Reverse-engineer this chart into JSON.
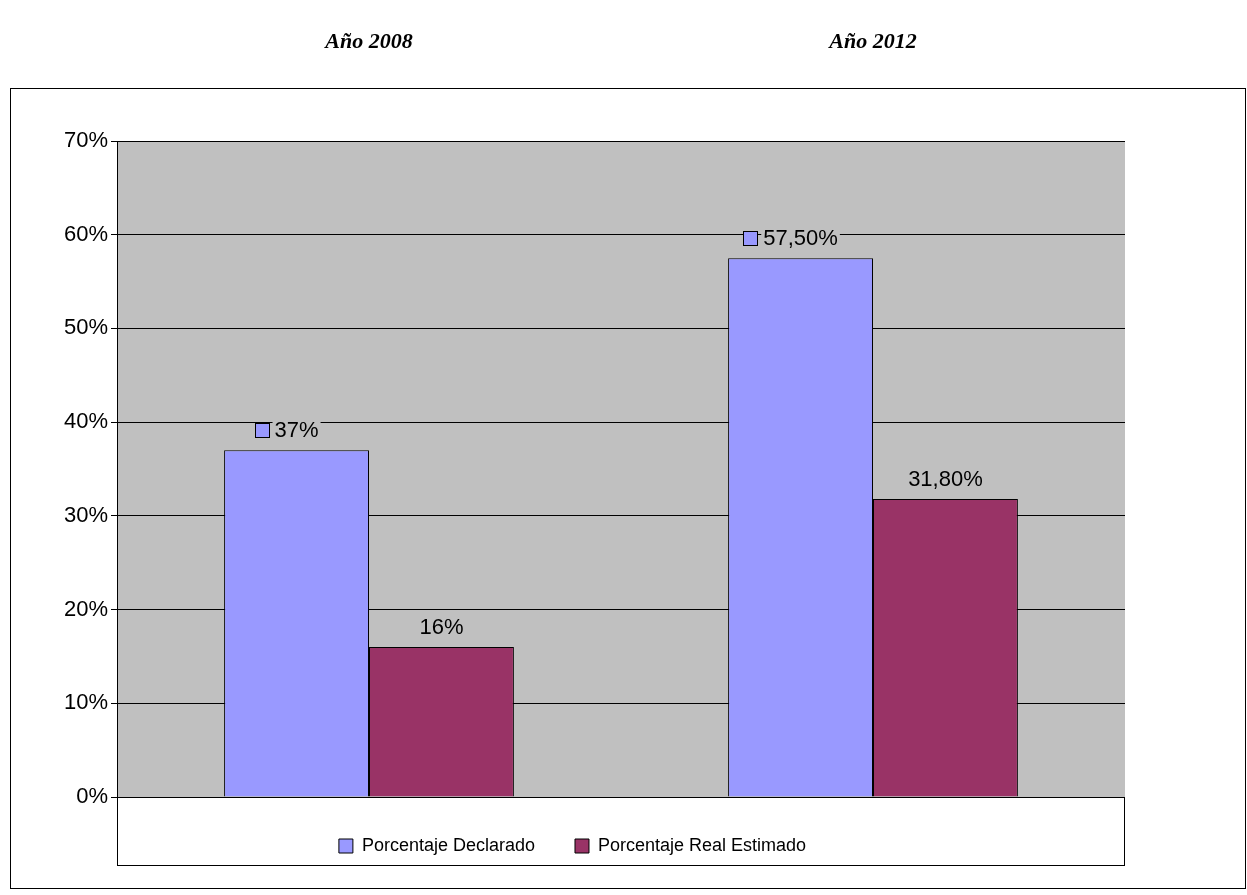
{
  "chart_data": {
    "type": "bar",
    "categories": [
      "Año 2008",
      "Año 2012"
    ],
    "series": [
      {
        "name": "Porcentaje Declarado",
        "color": "#9999ff",
        "values": [
          37,
          57.5
        ],
        "value_labels": [
          "37%",
          "57,50%"
        ]
      },
      {
        "name": "Porcentaje Real Estimado",
        "color": "#993366",
        "values": [
          16,
          31.8
        ],
        "value_labels": [
          "16%",
          "31,80%"
        ]
      }
    ],
    "ylim": [
      0,
      70
    ],
    "yticks": [
      {
        "value": 0,
        "label": "0%"
      },
      {
        "value": 10,
        "label": "10%"
      },
      {
        "value": 20,
        "label": "20%"
      },
      {
        "value": 30,
        "label": "30%"
      },
      {
        "value": 40,
        "label": "40%"
      },
      {
        "value": 50,
        "label": "50%"
      },
      {
        "value": 60,
        "label": "60%"
      },
      {
        "value": 70,
        "label": "70%"
      }
    ],
    "grid": "y",
    "legend": "bottom"
  }
}
